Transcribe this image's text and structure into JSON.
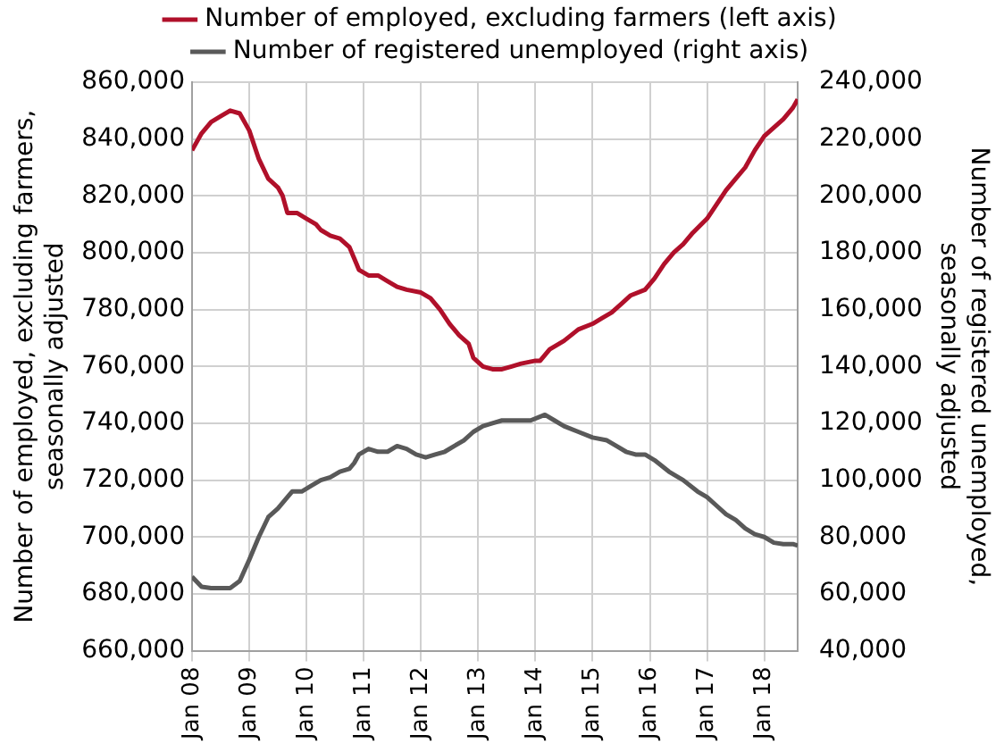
{
  "chart_data": {
    "type": "line",
    "ylabel": "Number of employed, excluding farmers, seasonally adjusted",
    "y2label": "Number of registered unemployed, seasonally adjusted",
    "xlim": [
      "2008-01",
      "2018-08"
    ],
    "xticks": [
      {
        "value": "2008-01",
        "label": "Jan 08"
      },
      {
        "value": "2009-01",
        "label": "Jan 09"
      },
      {
        "value": "2010-01",
        "label": "Jan 10"
      },
      {
        "value": "2011-01",
        "label": "Jan 11"
      },
      {
        "value": "2012-01",
        "label": "Jan 12"
      },
      {
        "value": "2013-01",
        "label": "Jan 13"
      },
      {
        "value": "2014-01",
        "label": "Jan 14"
      },
      {
        "value": "2015-01",
        "label": "Jan 15"
      },
      {
        "value": "2016-01",
        "label": "Jan 16"
      },
      {
        "value": "2017-01",
        "label": "Jan 17"
      },
      {
        "value": "2018-01",
        "label": "Jan 18"
      }
    ],
    "ylim": [
      660000,
      860000
    ],
    "yticks": [
      {
        "value": 660000,
        "label": "660,000"
      },
      {
        "value": 680000,
        "label": "680,000"
      },
      {
        "value": 700000,
        "label": "700,000"
      },
      {
        "value": 720000,
        "label": "720,000"
      },
      {
        "value": 740000,
        "label": "740,000"
      },
      {
        "value": 760000,
        "label": "760,000"
      },
      {
        "value": 780000,
        "label": "780,000"
      },
      {
        "value": 800000,
        "label": "800,000"
      },
      {
        "value": 820000,
        "label": "820,000"
      },
      {
        "value": 840000,
        "label": "840,000"
      },
      {
        "value": 860000,
        "label": "860,000"
      }
    ],
    "y2lim": [
      40000,
      240000
    ],
    "y2ticks": [
      {
        "value": 40000,
        "label": "40,000"
      },
      {
        "value": 60000,
        "label": "60,000"
      },
      {
        "value": 80000,
        "label": "80,000"
      },
      {
        "value": 100000,
        "label": "100,000"
      },
      {
        "value": 120000,
        "label": "120,000"
      },
      {
        "value": 140000,
        "label": "140,000"
      },
      {
        "value": 160000,
        "label": "160,000"
      },
      {
        "value": 180000,
        "label": "180,000"
      },
      {
        "value": 200000,
        "label": "200,000"
      },
      {
        "value": 220000,
        "label": "220,000"
      },
      {
        "value": 240000,
        "label": "240,000"
      }
    ],
    "grid": true,
    "legend": "top",
    "series": [
      {
        "name": "Number of employed, excluding farmers (left axis)",
        "color": "#b0102a",
        "axis": "y",
        "x": [
          "2008-01",
          "2008-03",
          "2008-05",
          "2008-07",
          "2008-09",
          "2008-11",
          "2009-01",
          "2009-03",
          "2009-05",
          "2009-07",
          "2009-08",
          "2009-09",
          "2009-11",
          "2010-01",
          "2010-03",
          "2010-04",
          "2010-06",
          "2010-08",
          "2010-10",
          "2010-11",
          "2010-12",
          "2011-02",
          "2011-04",
          "2011-06",
          "2011-08",
          "2011-10",
          "2012-01",
          "2012-03",
          "2012-05",
          "2012-07",
          "2012-09",
          "2012-11",
          "2012-12",
          "2013-02",
          "2013-04",
          "2013-06",
          "2013-08",
          "2013-10",
          "2014-01",
          "2014-02",
          "2014-04",
          "2014-07",
          "2014-10",
          "2015-01",
          "2015-03",
          "2015-05",
          "2015-07",
          "2015-09",
          "2015-12",
          "2016-02",
          "2016-04",
          "2016-06",
          "2016-08",
          "2016-10",
          "2017-01",
          "2017-03",
          "2017-05",
          "2017-07",
          "2017-09",
          "2017-11",
          "2018-01",
          "2018-03",
          "2018-05",
          "2018-07",
          "2018-08"
        ],
        "values": [
          836000,
          842000,
          846000,
          848000,
          850000,
          849000,
          843000,
          833000,
          826000,
          823000,
          820000,
          814000,
          814000,
          812000,
          810000,
          808000,
          806000,
          805000,
          802000,
          798000,
          794000,
          792000,
          792000,
          790000,
          788000,
          787000,
          786000,
          784000,
          780000,
          775000,
          771000,
          768000,
          763000,
          760000,
          759000,
          759000,
          760000,
          761000,
          762000,
          762000,
          766000,
          769000,
          773000,
          775000,
          777000,
          779000,
          782000,
          785000,
          787000,
          791000,
          796000,
          800000,
          803000,
          807000,
          812000,
          817000,
          822000,
          826000,
          830000,
          836000,
          841000,
          844000,
          847000,
          851000,
          854000
        ]
      },
      {
        "name": "Number of registered unemployed (right axis)",
        "color": "#595959",
        "axis": "y2",
        "x": [
          "2008-01",
          "2008-03",
          "2008-05",
          "2008-07",
          "2008-09",
          "2008-11",
          "2009-01",
          "2009-03",
          "2009-05",
          "2009-07",
          "2009-09",
          "2009-10",
          "2009-12",
          "2010-02",
          "2010-04",
          "2010-06",
          "2010-08",
          "2010-10",
          "2010-11",
          "2010-12",
          "2011-02",
          "2011-04",
          "2011-06",
          "2011-08",
          "2011-10",
          "2011-12",
          "2012-02",
          "2012-04",
          "2012-06",
          "2012-08",
          "2012-10",
          "2012-12",
          "2013-02",
          "2013-04",
          "2013-06",
          "2013-08",
          "2013-10",
          "2013-12",
          "2014-03",
          "2014-05",
          "2014-07",
          "2014-10",
          "2015-01",
          "2015-04",
          "2015-06",
          "2015-08",
          "2015-10",
          "2015-12",
          "2016-02",
          "2016-05",
          "2016-08",
          "2016-11",
          "2017-01",
          "2017-03",
          "2017-05",
          "2017-07",
          "2017-09",
          "2017-11",
          "2018-01",
          "2018-03",
          "2018-05",
          "2018-07",
          "2018-08"
        ],
        "values": [
          66000,
          62500,
          62000,
          62000,
          62000,
          64500,
          72000,
          80000,
          87000,
          90000,
          94000,
          96000,
          96000,
          98000,
          100000,
          101000,
          103000,
          104000,
          106000,
          109000,
          111000,
          110000,
          110000,
          112000,
          111000,
          109000,
          108000,
          109000,
          110000,
          112000,
          114000,
          117000,
          119000,
          120000,
          121000,
          121000,
          121000,
          121000,
          123000,
          121000,
          119000,
          117000,
          115000,
          114000,
          112000,
          110000,
          109000,
          109000,
          107000,
          103000,
          100000,
          96000,
          94000,
          91000,
          88000,
          86000,
          83000,
          81000,
          80000,
          78000,
          77500,
          77500,
          77000
        ]
      }
    ]
  }
}
